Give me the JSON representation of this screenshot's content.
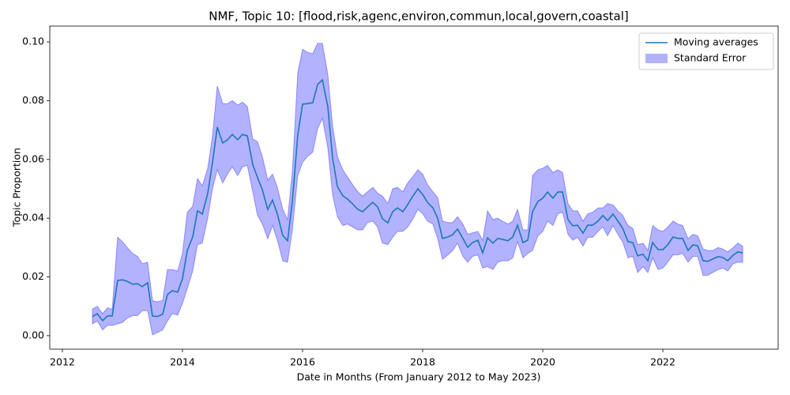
{
  "chart_data": {
    "type": "line",
    "title": "NMF, Topic 10: [flood,risk,agenc,environ,commun,local,govern,coastal]",
    "x_label": "Date in Months (From January 2012 to May 2023)",
    "y_label": "Topic Proportion",
    "xlim": [
      2011.79,
      2023.92
    ],
    "ylim": [
      -0.0046,
      0.1054
    ],
    "xticks": [
      2012,
      2014,
      2016,
      2018,
      2020,
      2022
    ],
    "yticks": [
      {
        "value": 0,
        "label": "0.00"
      },
      {
        "value": 0.02,
        "label": "0.02"
      },
      {
        "value": 0.04,
        "label": "0.04"
      },
      {
        "value": 0.06,
        "label": "0.06"
      },
      {
        "value": 0.08,
        "label": "0.08"
      },
      {
        "value": 0.1,
        "label": "0.10"
      }
    ],
    "legend": "upper right",
    "x": [
      2012.5,
      2012.58,
      2012.67,
      2012.75,
      2012.83,
      2012.92,
      2013,
      2013.08,
      2013.17,
      2013.25,
      2013.33,
      2013.42,
      2013.5,
      2013.58,
      2013.67,
      2013.75,
      2013.83,
      2013.92,
      2014,
      2014.08,
      2014.17,
      2014.25,
      2014.33,
      2014.42,
      2014.5,
      2014.58,
      2014.67,
      2014.75,
      2014.83,
      2014.92,
      2015,
      2015.08,
      2015.17,
      2015.25,
      2015.33,
      2015.42,
      2015.5,
      2015.58,
      2015.67,
      2015.75,
      2015.83,
      2015.92,
      2016,
      2016.08,
      2016.17,
      2016.25,
      2016.33,
      2016.42,
      2016.5,
      2016.58,
      2016.67,
      2016.75,
      2016.83,
      2016.92,
      2017,
      2017.08,
      2017.17,
      2017.25,
      2017.33,
      2017.42,
      2017.5,
      2017.58,
      2017.67,
      2017.75,
      2017.83,
      2017.92,
      2018,
      2018.08,
      2018.17,
      2018.25,
      2018.33,
      2018.42,
      2018.5,
      2018.58,
      2018.67,
      2018.75,
      2018.83,
      2018.92,
      2019,
      2019.08,
      2019.17,
      2019.25,
      2019.33,
      2019.42,
      2019.5,
      2019.58,
      2019.67,
      2019.75,
      2019.83,
      2019.92,
      2020,
      2020.08,
      2020.17,
      2020.25,
      2020.33,
      2020.42,
      2020.5,
      2020.58,
      2020.67,
      2020.75,
      2020.83,
      2020.92,
      2021,
      2021.08,
      2021.17,
      2021.25,
      2021.33,
      2021.42,
      2021.5,
      2021.58,
      2021.67,
      2021.75,
      2021.83,
      2021.92,
      2022,
      2022.08,
      2022.17,
      2022.25,
      2022.33,
      2022.42,
      2022.5,
      2022.58,
      2022.67,
      2022.75,
      2022.83,
      2022.92,
      2023,
      2023.08,
      2023.17,
      2023.25,
      2023.33
    ],
    "series": [
      {
        "name": "Moving averages",
        "color": "#1f77b4",
        "values": [
          0.0065,
          0.0075,
          0.0051,
          0.0067,
          0.0067,
          0.0188,
          0.019,
          0.0185,
          0.0175,
          0.0177,
          0.0167,
          0.018,
          0.0067,
          0.0065,
          0.0073,
          0.014,
          0.0153,
          0.0148,
          0.0194,
          0.029,
          0.0336,
          0.0425,
          0.0414,
          0.0484,
          0.059,
          0.071,
          0.0656,
          0.0667,
          0.0685,
          0.0667,
          0.0685,
          0.068,
          0.0583,
          0.0538,
          0.0497,
          0.043,
          0.0462,
          0.0414,
          0.0341,
          0.0323,
          0.0457,
          0.0683,
          0.0788,
          0.079,
          0.0793,
          0.0855,
          0.0871,
          0.078,
          0.0605,
          0.0508,
          0.0476,
          0.0465,
          0.0449,
          0.043,
          0.0422,
          0.0438,
          0.0454,
          0.0438,
          0.0398,
          0.0384,
          0.0422,
          0.0435,
          0.0422,
          0.0446,
          0.0473,
          0.05,
          0.0481,
          0.0454,
          0.0435,
          0.04,
          0.0331,
          0.0336,
          0.0344,
          0.0363,
          0.0331,
          0.0301,
          0.0317,
          0.0325,
          0.0282,
          0.0333,
          0.0315,
          0.0331,
          0.0328,
          0.0323,
          0.0336,
          0.0376,
          0.0317,
          0.0325,
          0.0422,
          0.0457,
          0.0468,
          0.0489,
          0.0468,
          0.0489,
          0.0489,
          0.0395,
          0.0374,
          0.0376,
          0.0349,
          0.0376,
          0.0376,
          0.039,
          0.0409,
          0.0392,
          0.0414,
          0.039,
          0.0366,
          0.032,
          0.0317,
          0.0272,
          0.0277,
          0.0255,
          0.0317,
          0.0293,
          0.0293,
          0.0309,
          0.0336,
          0.0331,
          0.0331,
          0.029,
          0.0309,
          0.0306,
          0.0255,
          0.0253,
          0.0261,
          0.0269,
          0.0266,
          0.0255,
          0.0274,
          0.0285,
          0.0282
        ]
      }
    ],
    "band": {
      "name": "Standard Error",
      "color": "#0000ff",
      "lower": [
        0.004,
        0.005,
        0.002,
        0.0035,
        0.0035,
        0.004,
        0.0045,
        0.006,
        0.0068,
        0.0068,
        0.0085,
        0.0085,
        0.0003,
        0.001,
        0.002,
        0.005,
        0.0075,
        0.007,
        0.011,
        0.016,
        0.022,
        0.031,
        0.0315,
        0.04,
        0.05,
        0.0565,
        0.052,
        0.055,
        0.0575,
        0.0545,
        0.0575,
        0.058,
        0.049,
        0.041,
        0.038,
        0.033,
        0.0375,
        0.0325,
        0.0255,
        0.025,
        0.036,
        0.0545,
        0.059,
        0.061,
        0.0625,
        0.0705,
        0.074,
        0.064,
        0.048,
        0.0405,
        0.0375,
        0.038,
        0.037,
        0.036,
        0.036,
        0.0385,
        0.039,
        0.037,
        0.0315,
        0.031,
        0.0335,
        0.0355,
        0.0355,
        0.037,
        0.0395,
        0.043,
        0.0415,
        0.039,
        0.038,
        0.033,
        0.026,
        0.0275,
        0.029,
        0.0315,
        0.027,
        0.025,
        0.027,
        0.0275,
        0.023,
        0.0235,
        0.0225,
        0.025,
        0.0255,
        0.0255,
        0.0265,
        0.032,
        0.0265,
        0.028,
        0.029,
        0.034,
        0.0355,
        0.039,
        0.0375,
        0.0415,
        0.042,
        0.0345,
        0.0325,
        0.0335,
        0.0305,
        0.0335,
        0.0335,
        0.0355,
        0.037,
        0.034,
        0.0375,
        0.0345,
        0.032,
        0.0265,
        0.027,
        0.0215,
        0.0235,
        0.0215,
        0.0265,
        0.0225,
        0.023,
        0.025,
        0.0275,
        0.0275,
        0.028,
        0.025,
        0.027,
        0.027,
        0.0205,
        0.0205,
        0.0215,
        0.0225,
        0.023,
        0.022,
        0.0245,
        0.025,
        0.025
      ],
      "upper": [
        0.009,
        0.01,
        0.0075,
        0.0095,
        0.009,
        0.0335,
        0.032,
        0.03,
        0.028,
        0.027,
        0.0245,
        0.025,
        0.012,
        0.0115,
        0.012,
        0.0225,
        0.0225,
        0.022,
        0.028,
        0.042,
        0.044,
        0.0535,
        0.051,
        0.057,
        0.068,
        0.085,
        0.079,
        0.079,
        0.08,
        0.0785,
        0.0795,
        0.078,
        0.067,
        0.066,
        0.061,
        0.053,
        0.055,
        0.0505,
        0.043,
        0.0395,
        0.056,
        0.0895,
        0.0975,
        0.0965,
        0.096,
        0.0995,
        0.0995,
        0.089,
        0.0715,
        0.061,
        0.0565,
        0.054,
        0.0515,
        0.049,
        0.0475,
        0.049,
        0.0505,
        0.0485,
        0.0475,
        0.045,
        0.05,
        0.0505,
        0.049,
        0.052,
        0.054,
        0.0565,
        0.055,
        0.0515,
        0.049,
        0.047,
        0.039,
        0.0385,
        0.0385,
        0.0405,
        0.038,
        0.0345,
        0.035,
        0.0355,
        0.0325,
        0.0425,
        0.0395,
        0.04,
        0.039,
        0.038,
        0.039,
        0.043,
        0.036,
        0.036,
        0.0545,
        0.0565,
        0.057,
        0.058,
        0.0555,
        0.0565,
        0.0555,
        0.045,
        0.0425,
        0.0425,
        0.039,
        0.0415,
        0.042,
        0.0435,
        0.0435,
        0.045,
        0.0445,
        0.0425,
        0.041,
        0.0375,
        0.0365,
        0.031,
        0.0315,
        0.029,
        0.0375,
        0.036,
        0.0355,
        0.037,
        0.039,
        0.038,
        0.0375,
        0.033,
        0.0345,
        0.034,
        0.0295,
        0.029,
        0.029,
        0.03,
        0.0295,
        0.0285,
        0.03,
        0.0315,
        0.0305
      ]
    }
  }
}
